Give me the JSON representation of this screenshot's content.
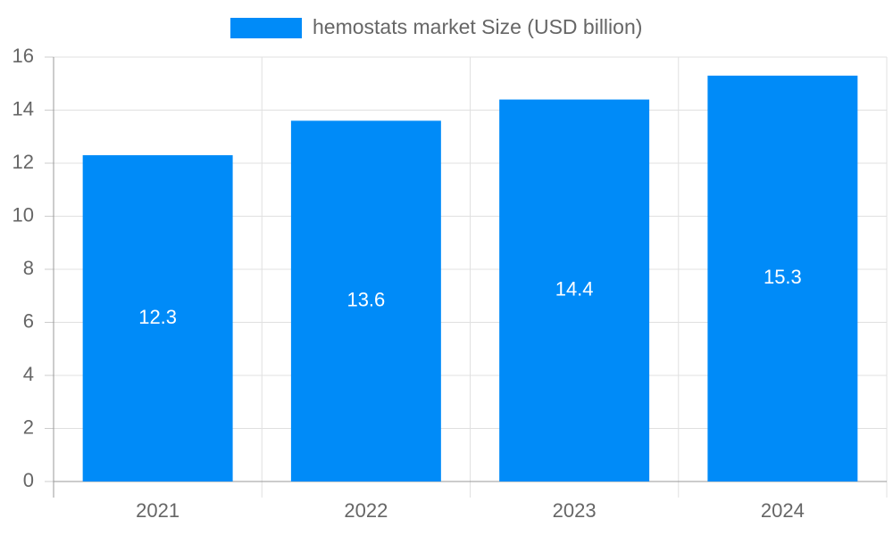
{
  "chart_data": {
    "type": "bar",
    "categories": [
      "2021",
      "2022",
      "2023",
      "2024"
    ],
    "series": [
      {
        "name": "hemostats market Size (USD billion)",
        "color": "#008bf8",
        "values": [
          12.3,
          13.6,
          14.4,
          15.3
        ]
      }
    ],
    "ylim": [
      0,
      16
    ],
    "yticks": [
      0,
      2,
      4,
      6,
      8,
      10,
      12,
      14,
      16
    ],
    "grid": true,
    "legend": "top",
    "data_labels": true
  }
}
